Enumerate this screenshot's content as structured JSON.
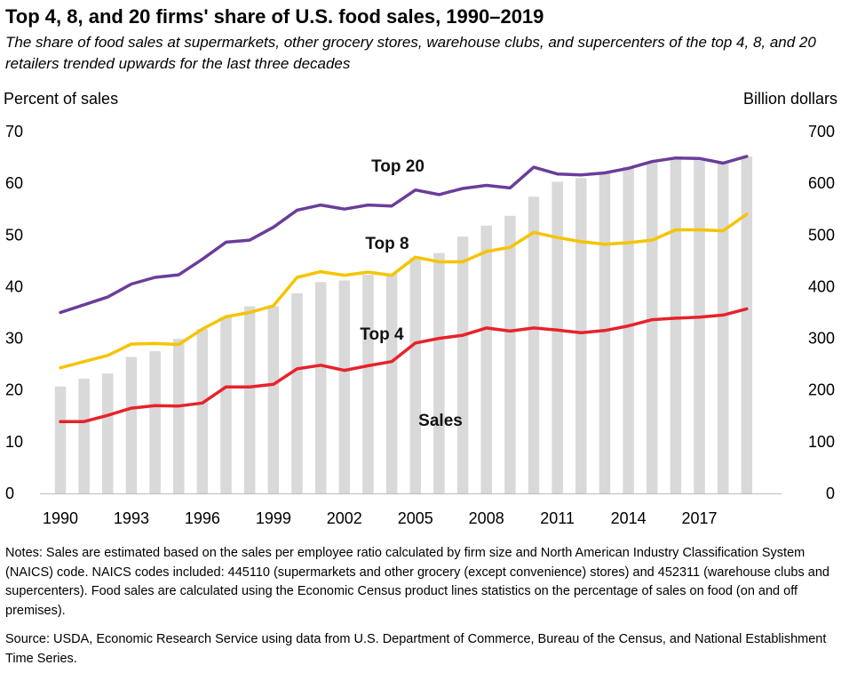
{
  "title": "Top 4, 8, and 20 firms' share of U.S. food sales, 1990–2019",
  "subtitle": "The share of food sales at supermarkets, other grocery stores, warehouse clubs, and supercenters of the top 4, 8, and 20 retailers trended upwards for the last three decades",
  "notes": "Notes: Sales are estimated based on the sales per employee ratio calculated by firm size and North American Industry Classification System (NAICS) code. NAICS codes included: 445110 (supermarkets and other grocery (except convenience) stores) and 452311 (warehouse clubs and supercenters). Food sales are calculated using the Economic Census product lines statistics on the percentage of sales on food (on and off premises).",
  "source": "Source: USDA, Economic Research Service using data from U.S. Department of Commerce, Bureau of the Census, and National Establishment Time Series.",
  "chart_data": {
    "type": "bar",
    "x": [
      1990,
      1991,
      1992,
      1993,
      1994,
      1995,
      1996,
      1997,
      1998,
      1999,
      2000,
      2001,
      2002,
      2003,
      2004,
      2005,
      2006,
      2007,
      2008,
      2009,
      2010,
      2011,
      2012,
      2013,
      2014,
      2015,
      2016,
      2017,
      2018,
      2019
    ],
    "x_tick_labels": [
      "1990",
      "1993",
      "1996",
      "1999",
      "2002",
      "2005",
      "2008",
      "2011",
      "2014",
      "2017"
    ],
    "ylabel_left": "Percent of sales",
    "ylabel_right": "Billion dollars",
    "ylim_left": [
      0,
      70
    ],
    "ylim_right": [
      0,
      700
    ],
    "yticks_left": [
      "0",
      "10",
      "20",
      "30",
      "40",
      "50",
      "60",
      "70"
    ],
    "yticks_right": [
      "0",
      "100",
      "200",
      "300",
      "400",
      "500",
      "600",
      "700"
    ],
    "grid": false,
    "series": [
      {
        "name": "Sales",
        "type": "bar",
        "axis": "right",
        "color": "#d9d9d9",
        "values": [
          207,
          222,
          232,
          264,
          275,
          299,
          318,
          341,
          362,
          362,
          387,
          409,
          412,
          423,
          425,
          456,
          465,
          497,
          518,
          537,
          574,
          603,
          610,
          621,
          632,
          641,
          648,
          648,
          642,
          652
        ]
      },
      {
        "name": "Top 20",
        "type": "line",
        "axis": "left",
        "color": "#6a3d9a",
        "values": [
          35.0,
          36.5,
          38.0,
          40.5,
          41.8,
          42.3,
          45.3,
          48.6,
          49.0,
          51.5,
          54.8,
          55.8,
          55.0,
          55.8,
          55.6,
          58.7,
          57.8,
          59.0,
          59.6,
          59.1,
          63.1,
          61.8,
          61.6,
          62.0,
          62.9,
          64.2,
          64.9,
          64.8,
          63.9,
          65.2
        ]
      },
      {
        "name": "Top 8",
        "type": "line",
        "axis": "left",
        "color": "#f5c400",
        "values": [
          24.3,
          25.5,
          26.7,
          28.9,
          29.0,
          28.8,
          31.8,
          34.2,
          35.0,
          36.3,
          41.8,
          42.9,
          42.2,
          42.8,
          42.2,
          45.7,
          44.8,
          44.8,
          46.8,
          47.6,
          50.5,
          49.5,
          48.7,
          48.2,
          48.5,
          49.0,
          51.0,
          51.0,
          50.8,
          54.0
        ]
      },
      {
        "name": "Top 4",
        "type": "line",
        "axis": "left",
        "color": "#e8222a",
        "values": [
          13.9,
          13.9,
          15.1,
          16.5,
          17.0,
          16.9,
          17.5,
          20.6,
          20.6,
          21.1,
          24.1,
          24.8,
          23.8,
          24.7,
          25.5,
          29.1,
          30.0,
          30.6,
          32.0,
          31.4,
          32.0,
          31.6,
          31.1,
          31.5,
          32.4,
          33.6,
          33.9,
          34.1,
          34.5,
          35.7
        ]
      }
    ],
    "annotations": [
      "Top 20",
      "Top 8",
      "Top 4",
      "Sales"
    ]
  }
}
